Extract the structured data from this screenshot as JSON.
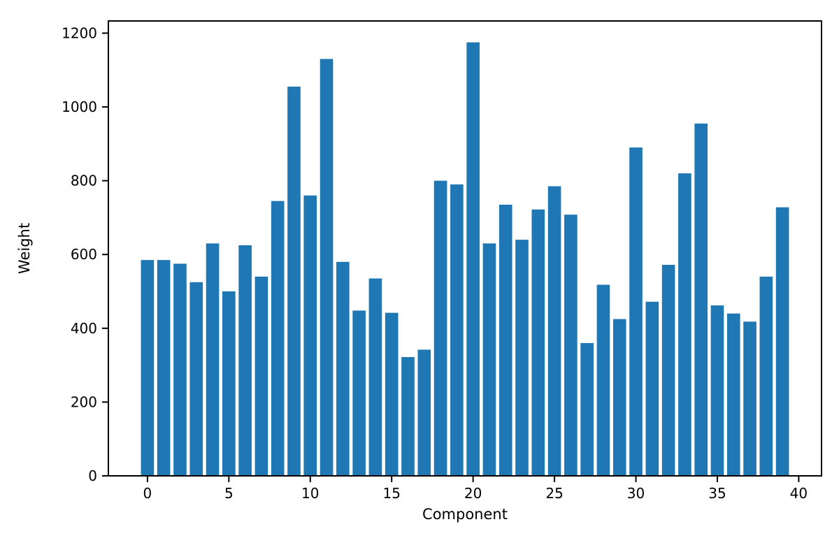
{
  "chart_data": {
    "type": "bar",
    "title": "",
    "xlabel": "Component",
    "ylabel": "Weight",
    "values": [
      585,
      585,
      575,
      525,
      630,
      500,
      625,
      540,
      745,
      1055,
      760,
      1130,
      580,
      448,
      535,
      442,
      322,
      342,
      800,
      790,
      1175,
      630,
      735,
      640,
      722,
      785,
      708,
      360,
      518,
      425,
      890,
      472,
      572,
      820,
      955,
      462,
      440,
      418,
      540,
      728
    ],
    "bar_color": "#1f77b4",
    "bar_width": 0.8,
    "xlim": [
      -2.4,
      41.4
    ],
    "ylim": [
      0,
      1233
    ],
    "xticks": [
      0,
      5,
      10,
      15,
      20,
      25,
      30,
      35,
      40
    ],
    "yticks": [
      0,
      200,
      400,
      600,
      800,
      1000,
      1200
    ],
    "grid": false,
    "legend": null,
    "spine_color": "#000000",
    "background_color": "#ffffff"
  }
}
